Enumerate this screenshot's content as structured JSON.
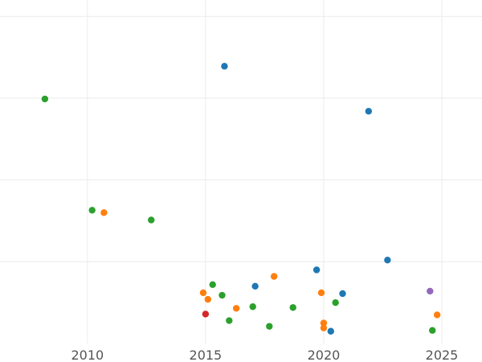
{
  "chart_data": {
    "type": "scatter",
    "title": "",
    "xlabel": "",
    "ylabel": "",
    "xlim": [
      2006.3,
      2026.7
    ],
    "ylim": [
      0,
      42
    ],
    "grid": true,
    "x_ticks": [
      {
        "value": 2010,
        "label": "2010"
      },
      {
        "value": 2015,
        "label": "2015"
      },
      {
        "value": 2020,
        "label": "2020"
      },
      {
        "value": 2025,
        "label": "2025"
      }
    ],
    "y_gridlines": [
      10,
      20,
      30,
      40
    ],
    "series": [
      {
        "color": "#1f77b4",
        "points": [
          {
            "x": 2015.8,
            "y": 33.9
          },
          {
            "x": 2021.9,
            "y": 28.4
          },
          {
            "x": 2022.7,
            "y": 10.2
          },
          {
            "x": 2019.7,
            "y": 9.0
          },
          {
            "x": 2017.1,
            "y": 7.0
          },
          {
            "x": 2020.8,
            "y": 6.1
          },
          {
            "x": 2020.3,
            "y": 1.5
          }
        ]
      },
      {
        "color": "#ff7f0e",
        "points": [
          {
            "x": 2010.7,
            "y": 16.0
          },
          {
            "x": 2017.9,
            "y": 8.2
          },
          {
            "x": 2014.9,
            "y": 6.2
          },
          {
            "x": 2019.9,
            "y": 6.2
          },
          {
            "x": 2015.1,
            "y": 5.4
          },
          {
            "x": 2016.3,
            "y": 4.3
          },
          {
            "x": 2024.8,
            "y": 3.5
          },
          {
            "x": 2020.0,
            "y": 2.5
          },
          {
            "x": 2020.0,
            "y": 1.9
          }
        ]
      },
      {
        "color": "#2ca02c",
        "points": [
          {
            "x": 2008.2,
            "y": 29.9
          },
          {
            "x": 2010.2,
            "y": 16.3
          },
          {
            "x": 2012.7,
            "y": 15.1
          },
          {
            "x": 2015.3,
            "y": 7.2
          },
          {
            "x": 2015.7,
            "y": 5.9
          },
          {
            "x": 2020.5,
            "y": 5.0
          },
          {
            "x": 2017.0,
            "y": 4.5
          },
          {
            "x": 2018.7,
            "y": 4.4
          },
          {
            "x": 2016.0,
            "y": 2.8
          },
          {
            "x": 2017.7,
            "y": 2.1
          },
          {
            "x": 2024.6,
            "y": 1.6
          }
        ]
      },
      {
        "color": "#d62728",
        "points": [
          {
            "x": 2015.0,
            "y": 3.6
          }
        ]
      },
      {
        "color": "#9467bd",
        "points": [
          {
            "x": 2024.5,
            "y": 6.4
          }
        ]
      }
    ]
  }
}
